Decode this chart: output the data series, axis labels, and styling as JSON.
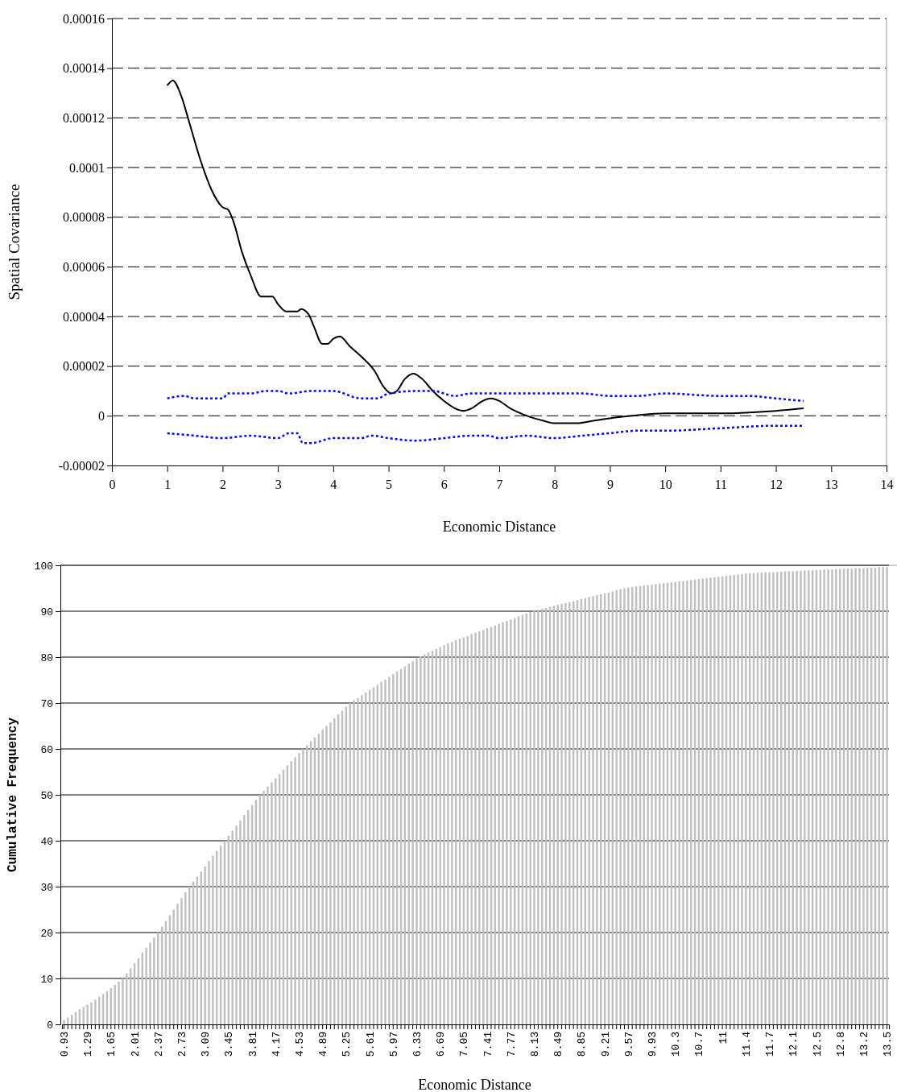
{
  "chart_data": [
    {
      "type": "line",
      "xlabel": "Economic Distance",
      "ylabel": "Spatial Covariance",
      "xlim": [
        0,
        14
      ],
      "xticks": [
        0,
        1,
        2,
        3,
        4,
        5,
        6,
        7,
        8,
        9,
        10,
        11,
        12,
        13,
        14
      ],
      "ylim": [
        -2e-05,
        0.00016
      ],
      "yticks": [
        {
          "value": -2e-05,
          "label": "-0.00002"
        },
        {
          "value": 0,
          "label": "0"
        },
        {
          "value": 2e-05,
          "label": "0.00002"
        },
        {
          "value": 4e-05,
          "label": "0.00004"
        },
        {
          "value": 6e-05,
          "label": "0.00006"
        },
        {
          "value": 8e-05,
          "label": "0.00008"
        },
        {
          "value": 0.0001,
          "label": "0.0001"
        },
        {
          "value": 0.00012,
          "label": "0.00012"
        },
        {
          "value": 0.00014,
          "label": "0.00014"
        },
        {
          "value": 0.00016,
          "label": "0.00016"
        }
      ],
      "grid": "y",
      "series": [
        {
          "color": "#000000",
          "line_style": "solid",
          "x": [
            1.0,
            1.1,
            1.25,
            1.4,
            1.6,
            1.8,
            2.0,
            2.1,
            2.2,
            2.35,
            2.5,
            2.7,
            2.9,
            3.0,
            3.15,
            3.35,
            3.42,
            3.55,
            3.65,
            3.8,
            3.9,
            4.0,
            4.12,
            4.3,
            4.5,
            4.75,
            4.9,
            5.05,
            5.15,
            5.3,
            5.45,
            5.6,
            5.8,
            6.0,
            6.2,
            6.35,
            6.5,
            6.7,
            6.85,
            7.0,
            7.2,
            7.5,
            7.8,
            8.0,
            8.4,
            8.7,
            9.0,
            9.4,
            10.0,
            11.0,
            12.0,
            12.5
          ],
          "values": [
            0.000133,
            0.000135,
            0.000129,
            0.000118,
            0.000103,
            9.1e-05,
            8.4e-05,
            8.3e-05,
            7.8e-05,
            6.6e-05,
            5.7e-05,
            4.8e-05,
            4.8e-05,
            4.5e-05,
            4.2e-05,
            4.2e-05,
            4.3e-05,
            4.1e-05,
            3.6e-05,
            2.9e-05,
            2.9e-05,
            3.1e-05,
            3.2e-05,
            2.8e-05,
            2.4e-05,
            1.8e-05,
            1.2e-05,
            9e-06,
            1e-05,
            1.5e-05,
            1.7e-05,
            1.5e-05,
            1e-05,
            6e-06,
            3e-06,
            2e-06,
            3e-06,
            6e-06,
            7e-06,
            6e-06,
            3e-06,
            0.0,
            -2e-06,
            -3e-06,
            -3e-06,
            -2e-06,
            -1e-06,
            0.0,
            1e-06,
            1e-06,
            2e-06,
            3e-06
          ]
        },
        {
          "color": "#0000ff",
          "line_style": "dotted",
          "x": [
            1.0,
            1.3,
            1.5,
            2.0,
            2.1,
            2.5,
            2.8,
            3.0,
            3.2,
            3.6,
            4.0,
            4.5,
            4.8,
            5.0,
            5.5,
            5.8,
            6.2,
            6.5,
            7.0,
            7.5,
            8.0,
            8.5,
            9.0,
            9.5,
            10.0,
            11.0,
            11.5,
            12.0,
            12.5
          ],
          "values": [
            7e-06,
            8e-06,
            7e-06,
            7e-06,
            9e-06,
            9e-06,
            1e-05,
            1e-05,
            9e-06,
            1e-05,
            1e-05,
            7e-06,
            7e-06,
            9e-06,
            1e-05,
            1e-05,
            8e-06,
            9e-06,
            9e-06,
            9e-06,
            9e-06,
            9e-06,
            8e-06,
            8e-06,
            9e-06,
            8e-06,
            8e-06,
            7e-06,
            6e-06
          ]
        },
        {
          "color": "#0000ff",
          "line_style": "dotted",
          "x": [
            1.0,
            1.5,
            2.0,
            2.5,
            3.0,
            3.2,
            3.35,
            3.45,
            3.6,
            4.0,
            4.5,
            4.7,
            5.0,
            5.5,
            6.0,
            6.5,
            6.8,
            7.0,
            7.5,
            8.0,
            8.5,
            9.0,
            9.5,
            10.0,
            11.0,
            12.0,
            12.5
          ],
          "values": [
            -7e-06,
            -8e-06,
            -9e-06,
            -8e-06,
            -9e-06,
            -7e-06,
            -7e-06,
            -1.1e-05,
            -1.1e-05,
            -9e-06,
            -9e-06,
            -8e-06,
            -9e-06,
            -1e-05,
            -9e-06,
            -8e-06,
            -8e-06,
            -9e-06,
            -8e-06,
            -9e-06,
            -8e-06,
            -7e-06,
            -6e-06,
            -6e-06,
            -5e-06,
            -4e-06,
            -4e-06
          ]
        }
      ]
    },
    {
      "type": "bar",
      "xlabel": "Economic Distance",
      "ylabel": "Cumulative Frequency",
      "ylim": [
        0,
        100
      ],
      "yticks": [
        0,
        10,
        20,
        30,
        40,
        50,
        60,
        70,
        80,
        90,
        100
      ],
      "grid": "y",
      "color": "#c0c0c0",
      "categories": [
        "0.93",
        null,
        null,
        null,
        null,
        null,
        "1.29",
        null,
        null,
        null,
        null,
        null,
        "1.65",
        null,
        null,
        null,
        null,
        null,
        "2.01",
        null,
        null,
        null,
        null,
        null,
        "2.37",
        null,
        null,
        null,
        null,
        null,
        "2.73",
        null,
        null,
        null,
        null,
        null,
        "3.09",
        null,
        null,
        null,
        null,
        null,
        "3.45",
        null,
        null,
        null,
        null,
        null,
        "3.81",
        null,
        null,
        null,
        null,
        null,
        "4.17",
        null,
        null,
        null,
        null,
        null,
        "4.53",
        null,
        null,
        null,
        null,
        null,
        "4.89",
        null,
        null,
        null,
        null,
        null,
        "5.25",
        null,
        null,
        null,
        null,
        null,
        "5.61",
        null,
        null,
        null,
        null,
        null,
        "5.97",
        null,
        null,
        null,
        null,
        null,
        "6.33",
        null,
        null,
        null,
        null,
        null,
        "6.69",
        null,
        null,
        null,
        null,
        null,
        "7.05",
        null,
        null,
        null,
        null,
        null,
        "7.41",
        null,
        null,
        null,
        null,
        null,
        "7.77",
        null,
        null,
        null,
        null,
        null,
        "8.13",
        null,
        null,
        null,
        null,
        null,
        "8.49",
        null,
        null,
        null,
        null,
        null,
        "8.85",
        null,
        null,
        null,
        null,
        null,
        "9.21",
        null,
        null,
        null,
        null,
        null,
        "9.57",
        null,
        null,
        null,
        null,
        null,
        "9.93",
        null,
        null,
        null,
        null,
        null,
        "10.3",
        null,
        null,
        null,
        null,
        null,
        "10.7",
        null,
        null,
        null,
        null,
        null,
        "11",
        null,
        null,
        null,
        null,
        null,
        "11.4",
        null,
        null,
        null,
        null,
        null,
        "11.7",
        null,
        null,
        null,
        null,
        null,
        "12.1",
        null,
        null,
        null,
        null,
        null,
        "12.5",
        null,
        null,
        null,
        null,
        null,
        "12.8",
        null,
        null,
        null,
        null,
        null,
        "13.2",
        null,
        null,
        null,
        null,
        null,
        "13.5"
      ],
      "values": [
        0.9,
        1.5,
        2.1,
        2.7,
        3.3,
        3.8,
        4.3,
        4.8,
        5.4,
        6.0,
        6.6,
        7.2,
        7.9,
        8.6,
        9.3,
        10.0,
        11.1,
        12.2,
        13.3,
        14.4,
        15.6,
        16.7,
        17.8,
        18.9,
        20.0,
        21.3,
        22.5,
        23.8,
        25.0,
        26.3,
        27.5,
        28.8,
        30.0,
        31.1,
        32.2,
        33.3,
        34.4,
        35.6,
        36.7,
        37.8,
        38.9,
        40.0,
        41.1,
        42.2,
        43.3,
        44.4,
        45.6,
        46.7,
        47.8,
        48.9,
        50.0,
        50.9,
        51.8,
        52.7,
        53.6,
        54.5,
        55.5,
        56.4,
        57.3,
        58.2,
        59.1,
        60.0,
        60.8,
        61.7,
        62.5,
        63.3,
        64.2,
        65.0,
        65.8,
        66.7,
        67.5,
        68.3,
        69.2,
        70.0,
        70.6,
        71.1,
        71.7,
        72.3,
        72.9,
        73.4,
        74.0,
        74.6,
        75.1,
        75.7,
        76.3,
        76.9,
        77.4,
        78.0,
        78.6,
        79.1,
        79.7,
        80.2,
        80.6,
        81.0,
        81.4,
        81.8,
        82.2,
        82.6,
        83.0,
        83.3,
        83.7,
        84.0,
        84.3,
        84.6,
        85.0,
        85.3,
        85.6,
        85.9,
        86.3,
        86.6,
        86.9,
        87.2,
        87.6,
        87.9,
        88.2,
        88.5,
        88.9,
        89.2,
        89.5,
        89.8,
        90.1,
        90.3,
        90.5,
        90.7,
        91.0,
        91.2,
        91.4,
        91.6,
        91.8,
        92.0,
        92.2,
        92.4,
        92.7,
        92.9,
        93.1,
        93.3,
        93.5,
        93.7,
        93.9,
        94.1,
        94.3,
        94.6,
        94.8,
        95.0,
        95.2,
        95.3,
        95.4,
        95.5,
        95.6,
        95.7,
        95.8,
        95.9,
        96.0,
        96.1,
        96.2,
        96.3,
        96.4,
        96.5,
        96.6,
        96.7,
        96.8,
        96.9,
        97.0,
        97.1,
        97.2,
        97.3,
        97.4,
        97.5,
        97.6,
        97.7,
        97.8,
        97.9,
        98.0,
        98.1,
        98.2,
        98.3,
        98.3,
        98.4,
        98.4,
        98.5,
        98.5,
        98.5,
        98.6,
        98.6,
        98.7,
        98.7,
        98.7,
        98.8,
        98.8,
        98.9,
        98.9,
        98.9,
        99.0,
        99.0,
        99.1,
        99.1,
        99.1,
        99.2,
        99.2,
        99.3,
        99.3,
        99.3,
        99.4,
        99.4,
        99.4,
        99.5,
        99.5,
        99.5,
        99.6,
        99.6,
        99.6
      ]
    }
  ]
}
